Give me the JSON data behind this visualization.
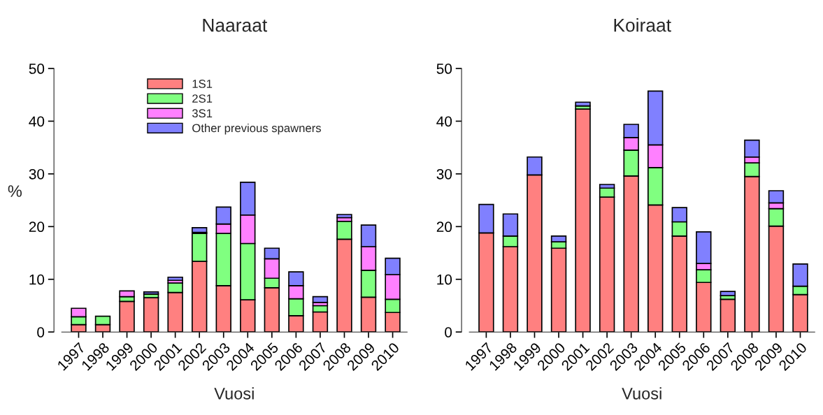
{
  "chart_data": [
    {
      "type": "bar",
      "stacked": true,
      "title": "Naaraat",
      "xlabel": "Vuosi",
      "ylabel": "%",
      "categories": [
        "1997",
        "1998",
        "1999",
        "2000",
        "2001",
        "2002",
        "2003",
        "2004",
        "2005",
        "2006",
        "2007",
        "2008",
        "2009",
        "2010"
      ],
      "ylim": [
        0,
        50
      ],
      "yticks": [
        0,
        10,
        20,
        30,
        40,
        50
      ],
      "grid": false,
      "legend": "top",
      "series": [
        {
          "name": "1S1",
          "color": "#ff8080",
          "values": [
            1.4,
            1.4,
            5.8,
            6.5,
            7.5,
            13.4,
            8.8,
            6.1,
            8.4,
            3.1,
            3.8,
            17.6,
            6.6,
            3.7
          ]
        },
        {
          "name": "2S1",
          "color": "#80ff80",
          "values": [
            1.5,
            1.6,
            0.9,
            0.7,
            1.8,
            5.3,
            9.9,
            10.7,
            1.8,
            3.2,
            1.2,
            3.4,
            5.1,
            2.5
          ]
        },
        {
          "name": "3S1",
          "color": "#ff80ff",
          "values": [
            1.6,
            null,
            1.1,
            null,
            0.5,
            0.2,
            1.8,
            5.4,
            3.7,
            2.5,
            0.6,
            0.7,
            4.5,
            4.7
          ]
        },
        {
          "name": "Other previous spawners",
          "color": "#8080ff",
          "values": [
            null,
            null,
            null,
            0.4,
            0.6,
            0.9,
            3.2,
            6.2,
            2.0,
            2.6,
            1.1,
            0.6,
            4.1,
            3.1
          ]
        }
      ]
    },
    {
      "type": "bar",
      "stacked": true,
      "title": "Koiraat",
      "xlabel": "Vuosi",
      "categories": [
        "1997",
        "1998",
        "1999",
        "2000",
        "2001",
        "2002",
        "2003",
        "2004",
        "2005",
        "2006",
        "2007",
        "2008",
        "2009",
        "2010"
      ],
      "ylim": [
        0,
        50
      ],
      "yticks": [
        0,
        10,
        20,
        30,
        40,
        50
      ],
      "grid": false,
      "series": [
        {
          "color": "#ff8080",
          "values": [
            18.8,
            16.2,
            29.8,
            15.9,
            42.3,
            25.6,
            29.6,
            24.1,
            18.2,
            9.4,
            6.2,
            29.5,
            20.1,
            7.1
          ]
        },
        {
          "color": "#80ff80",
          "values": [
            null,
            2.0,
            null,
            1.2,
            0.6,
            1.7,
            4.9,
            7.1,
            2.7,
            2.4,
            0.7,
            2.6,
            3.3,
            1.6
          ]
        },
        {
          "color": "#ff80ff",
          "values": [
            null,
            null,
            null,
            null,
            null,
            null,
            2.4,
            4.3,
            null,
            1.2,
            null,
            1.1,
            1.1,
            null
          ]
        },
        {
          "color": "#8080ff",
          "values": [
            5.4,
            4.2,
            3.4,
            1.1,
            0.7,
            0.7,
            2.5,
            10.2,
            2.7,
            6.0,
            0.8,
            3.2,
            2.3,
            4.2
          ]
        }
      ]
    }
  ]
}
